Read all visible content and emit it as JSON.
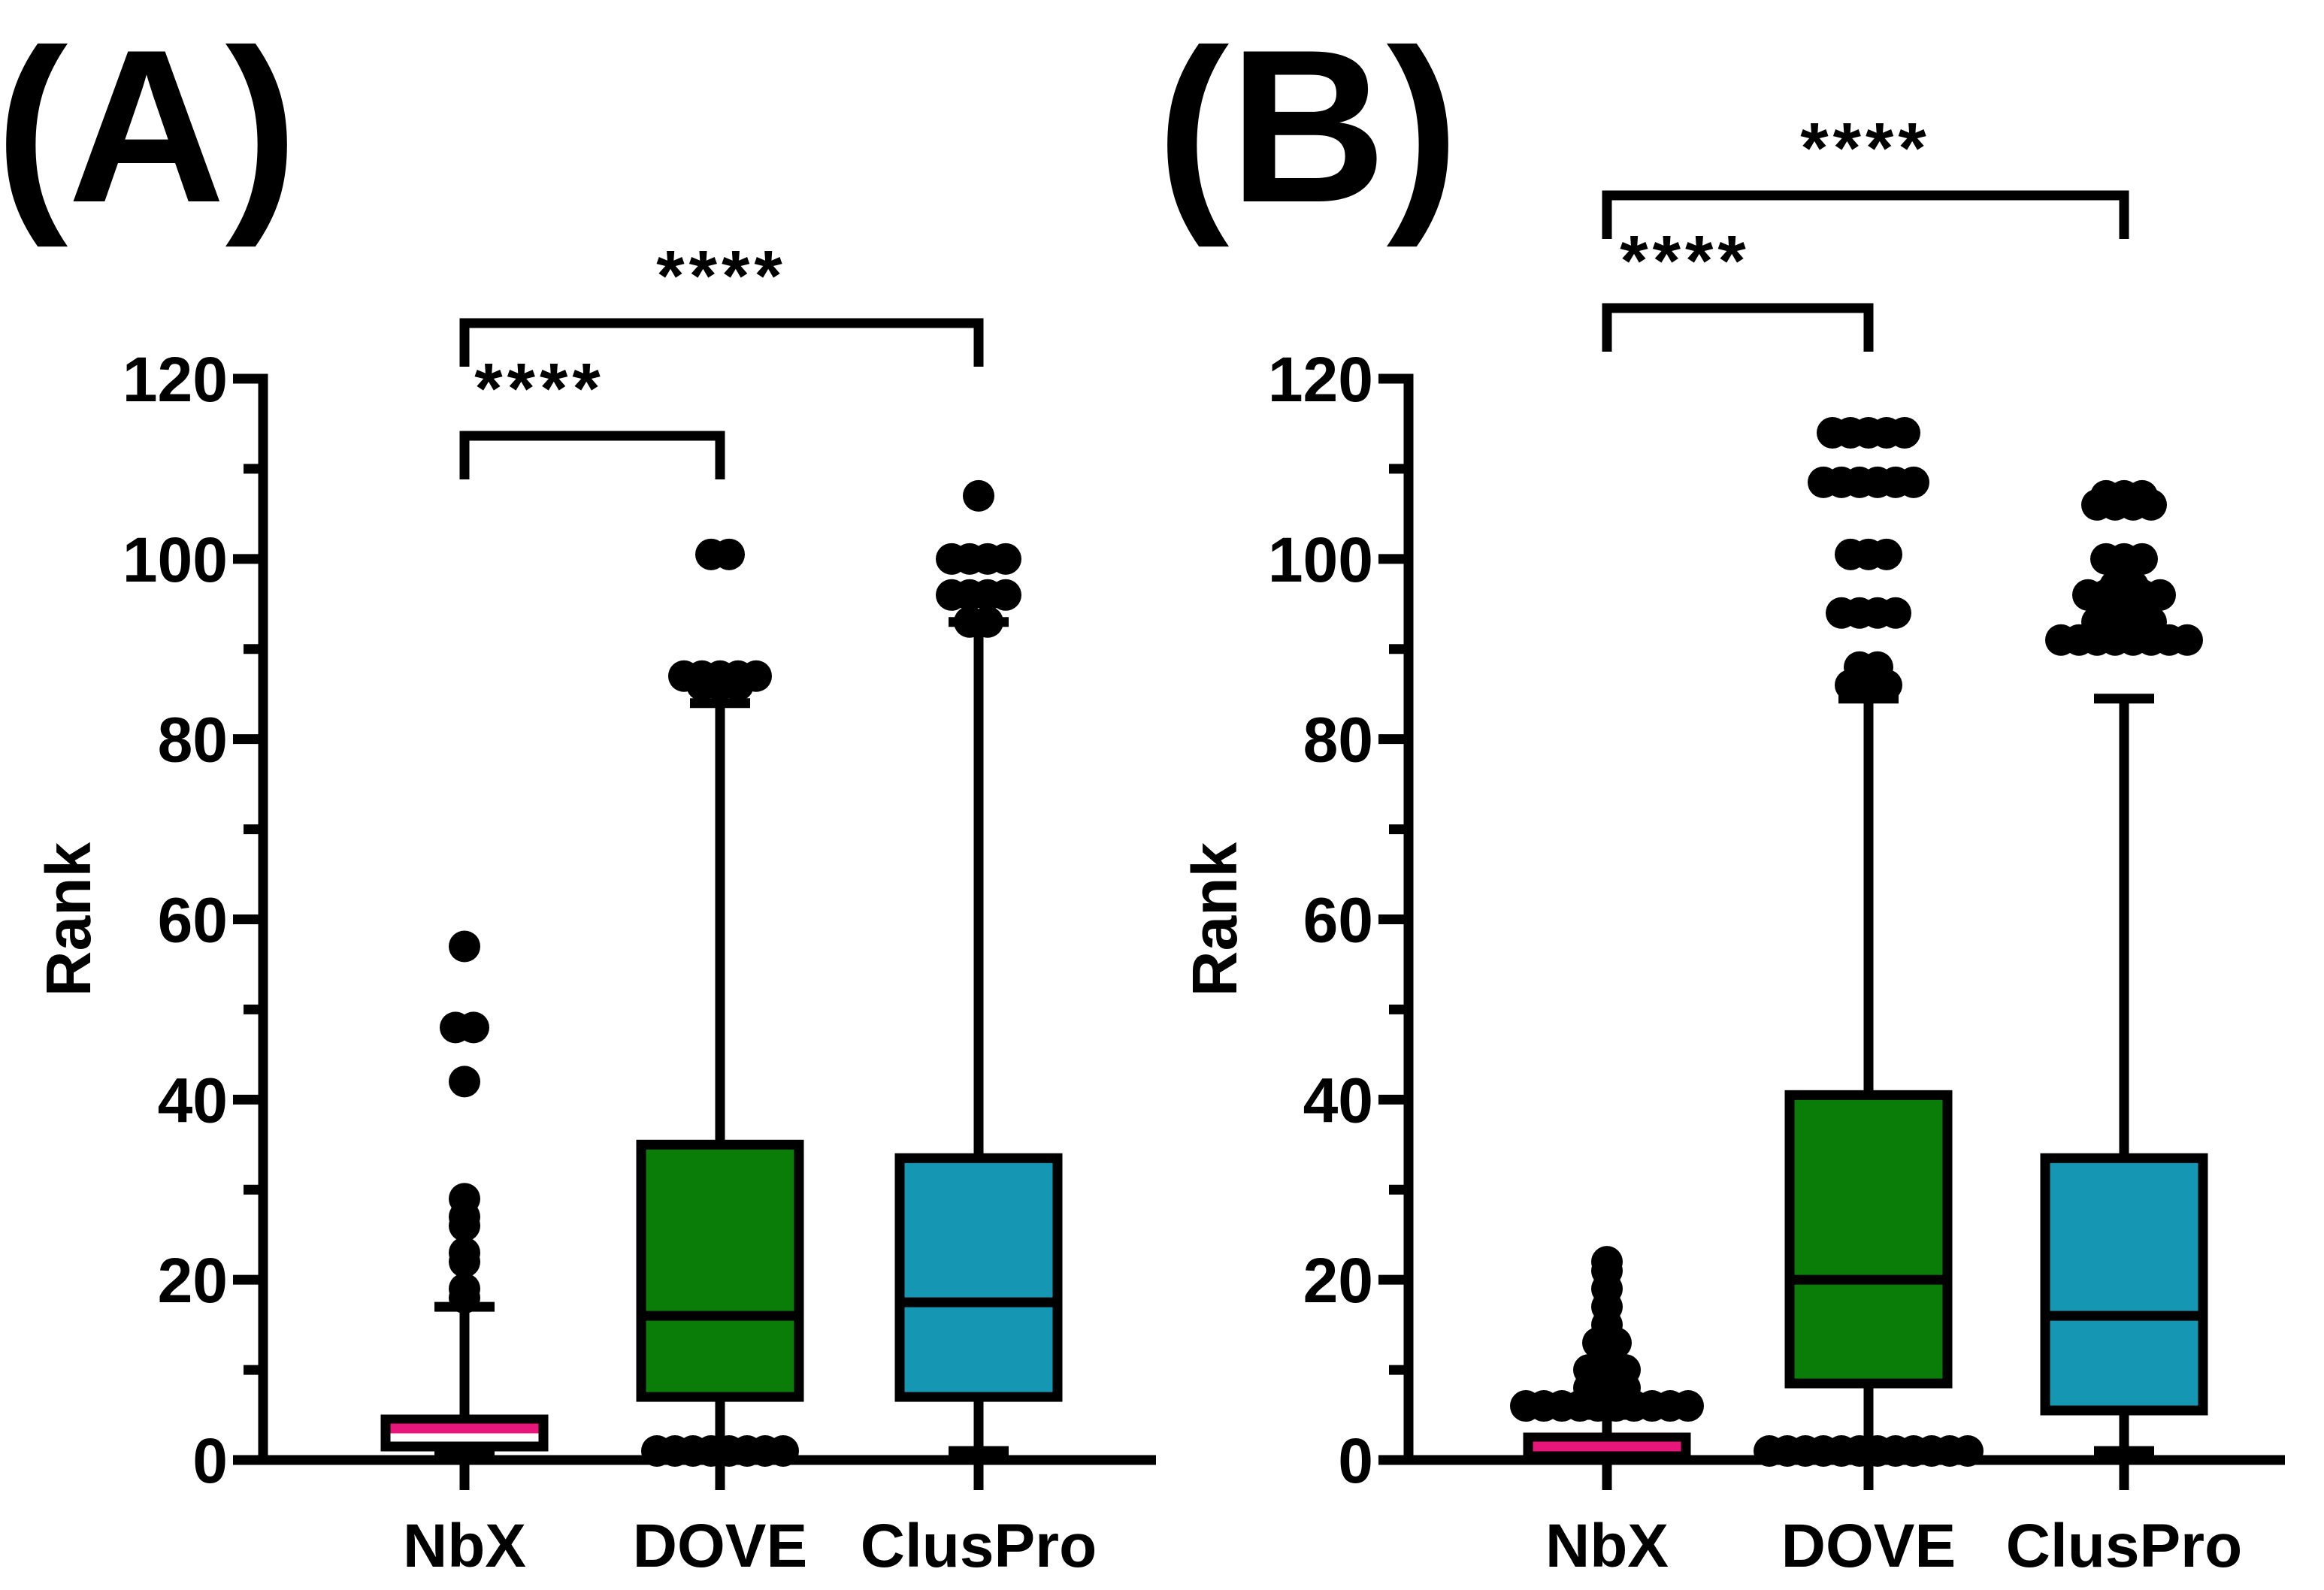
{
  "chart_data": [
    {
      "type": "box",
      "panel_label": "(A)",
      "ylabel": "Rank",
      "ylim": [
        0,
        120
      ],
      "yticks": [
        "0",
        "20",
        "40",
        "60",
        "80",
        "100",
        "120"
      ],
      "categories": [
        "NbX",
        "DOVE",
        "ClusPro"
      ],
      "colors": [
        "#e8157a",
        "#0a7d08",
        "#1596b2"
      ],
      "boxes": [
        {
          "name": "NbX",
          "q1": 1.5,
          "median": 3.5,
          "q3": 4.5,
          "whisker_low": 1,
          "whisker_high": 17,
          "outliers": [
            18,
            19,
            22,
            23,
            26,
            27,
            29,
            42,
            48,
            48,
            57
          ]
        },
        {
          "name": "DOVE",
          "q1": 7,
          "median": 16,
          "q3": 35,
          "whisker_low": 1,
          "whisker_high": 84,
          "outliers": [
            1,
            1,
            1,
            1,
            1,
            1,
            1,
            1,
            86,
            86,
            86,
            87,
            87,
            87,
            87,
            87,
            100.5,
            100.5
          ]
        },
        {
          "name": "ClusPro",
          "q1": 7,
          "median": 17.5,
          "q3": 33.5,
          "whisker_low": 1,
          "whisker_high": 93,
          "outliers": [
            93,
            93,
            96,
            96,
            96,
            96,
            100,
            100,
            100,
            100,
            107
          ]
        }
      ],
      "significance": [
        {
          "from": "NbX",
          "to": "DOVE",
          "label": "****"
        },
        {
          "from": "NbX",
          "to": "ClusPro",
          "label": "****"
        }
      ]
    },
    {
      "type": "box",
      "panel_label": "(B)",
      "ylabel": "Rank",
      "ylim": [
        0,
        120
      ],
      "yticks": [
        "0",
        "20",
        "40",
        "60",
        "80",
        "100",
        "120"
      ],
      "categories": [
        "NbX",
        "DOVE",
        "ClusPro"
      ],
      "colors": [
        "#e8157a",
        "#0a7d08",
        "#1596b2"
      ],
      "boxes": [
        {
          "name": "NbX",
          "q1": 1,
          "median": 1.5,
          "q3": 2.5,
          "whisker_low": 1,
          "whisker_high": 5,
          "outliers": [
            6,
            6,
            6,
            6,
            6,
            6,
            6,
            6,
            6,
            6,
            8,
            8,
            8,
            9,
            9,
            10,
            10,
            10,
            11,
            12,
            13,
            13,
            14,
            15,
            17,
            19,
            21,
            22
          ]
        },
        {
          "name": "DOVE",
          "q1": 8.5,
          "median": 20,
          "q3": 40.5,
          "whisker_low": 1,
          "whisker_high": 84.5,
          "outliers": [
            1,
            1,
            1,
            1,
            1,
            1,
            1,
            1,
            1,
            1,
            1,
            1,
            86,
            86,
            86,
            88,
            88,
            94,
            94,
            94,
            94,
            100.5,
            100.5,
            100.5,
            108.5,
            108.5,
            108.5,
            108.5,
            108.5,
            108.5,
            114,
            114,
            114,
            114,
            114
          ]
        },
        {
          "name": "ClusPro",
          "q1": 5.5,
          "median": 16,
          "q3": 33.5,
          "whisker_low": 1,
          "whisker_high": 84.5,
          "outliers": [
            91,
            91,
            91,
            91,
            91,
            91,
            91,
            91,
            93,
            93,
            93,
            93,
            96,
            96,
            96,
            96,
            96,
            97,
            97,
            100,
            100,
            100,
            106,
            106,
            106,
            106,
            107,
            107,
            107
          ]
        }
      ],
      "significance": [
        {
          "from": "NbX",
          "to": "DOVE",
          "label": "****"
        },
        {
          "from": "NbX",
          "to": "ClusPro",
          "label": "****"
        }
      ]
    }
  ]
}
